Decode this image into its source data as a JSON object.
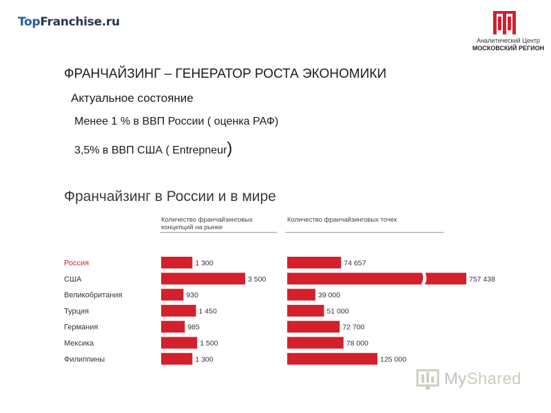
{
  "header": {
    "brand_top": "Top",
    "brand_rest": "Franchise.ru",
    "org_line1": "Аналитический Центр",
    "org_line2": "МОСКОВСКИЙ РЕГИОН"
  },
  "slide": {
    "title": "ФРАНЧАЙЗИНГ – ГЕНЕРАТОР РОСТА ЭКОНОМИКИ",
    "subtitle": "Актуальное состояние",
    "bullet1": "Менее 1 % в ВВП России ( оценка РАФ)",
    "bullet2": "3,5% в ВВП США ( Entrepneur",
    "bullet2_close": ")"
  },
  "chart_data": {
    "type": "bar",
    "title": "Франчайзинг в России и в мире",
    "categories": [
      "Россия",
      "США",
      "Великобритания",
      "Турция",
      "Германия",
      "Мексика",
      "Филиппины"
    ],
    "highlight_category": "Россия",
    "series": [
      {
        "name": "Количество франчайзинговых концепций на рынке",
        "values": [
          1300,
          3500,
          930,
          1450,
          985,
          1500,
          1300
        ],
        "labels": [
          "1 300",
          "3 500",
          "930",
          "1 450",
          "985",
          "1 500",
          "1 300"
        ]
      },
      {
        "name": "Количество франчайзинговых точек",
        "values": [
          74657,
          757438,
          39000,
          51000,
          72700,
          78000,
          125000
        ],
        "labels": [
          "74 657",
          "757 438",
          "39 000",
          "51 000",
          "72 700",
          "78 000",
          "125 000"
        ],
        "broken_axis_category": "США"
      }
    ],
    "bar_color": "#d4202c",
    "highlight_color": "#d4202c",
    "grid": false,
    "legend": "none"
  },
  "watermark": {
    "text_my": "My",
    "text_shared": "Shared"
  }
}
